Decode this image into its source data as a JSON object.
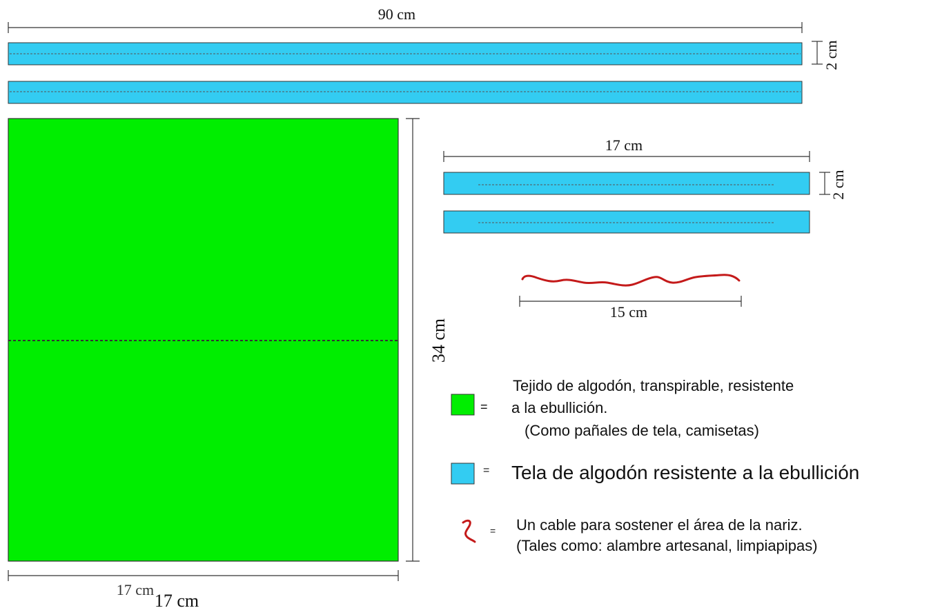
{
  "colors": {
    "green_fabric": "#00ee00",
    "blue_strip": "#33ccf2",
    "wire": "#c41a1a",
    "line": "#333333"
  },
  "long_strip": {
    "length_label": "90 cm",
    "width_label": "2 cm"
  },
  "square": {
    "height_label": "34 cm",
    "width_label": "17 cm",
    "width_label_dup": "17 cm"
  },
  "short_strip": {
    "length_label": "17 cm",
    "width_label": "2 cm"
  },
  "wire": {
    "length_label": "15 cm"
  },
  "legend": {
    "equals": "=",
    "green_desc_line1": "Tejido de algodón, transpirable, resistente",
    "green_desc_line2": "a la ebullición.",
    "green_desc_line3": "(Como pañales de tela, camisetas)",
    "blue_desc": "Tela de algodón resistente a la ebullición",
    "wire_desc_line1": "Un cable para sostener el área de la nariz.",
    "wire_desc_line2": "(Tales como: alambre artesanal, limpiapipas)"
  }
}
